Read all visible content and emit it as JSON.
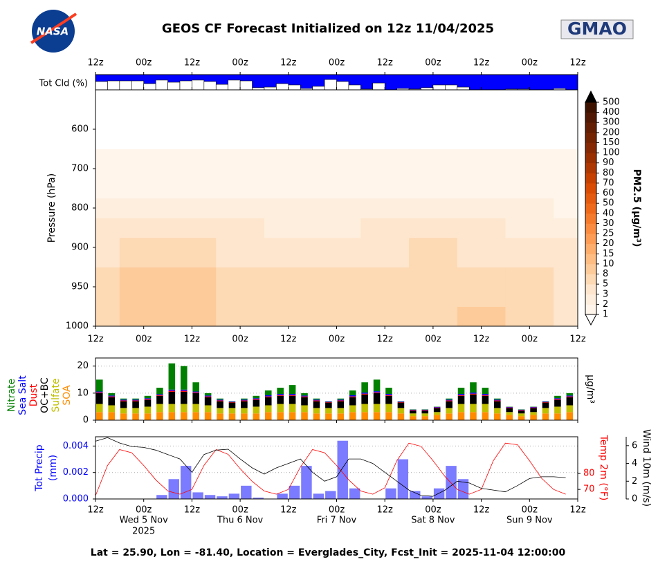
{
  "header": {
    "title": "GEOS CF Forecast Initialized on 12z 11/04/2025",
    "nasa_logo": "NASA",
    "gmao_logo": "GMAO"
  },
  "footer": "Lat = 25.90, Lon = -81.40, Location = Everglades_City, Fcst_Init = 2025-11-04 12:00:00",
  "chart_data": [
    {
      "type": "bar",
      "ylabel": "Tot Cld (%)",
      "color": "#ffffff",
      "background": "#0000ff",
      "x": [
        0,
        3,
        6,
        9,
        12,
        15,
        18,
        21,
        24,
        27,
        30,
        33,
        36,
        39,
        42,
        45,
        48,
        51,
        54,
        57,
        60,
        63,
        66,
        69,
        72,
        75,
        78,
        81,
        84,
        87,
        90,
        93,
        96,
        99,
        102,
        105,
        108,
        111,
        114,
        117
      ],
      "values": [
        55,
        59,
        59,
        59,
        41,
        64,
        50,
        59,
        64,
        55,
        36,
        64,
        59,
        14,
        18,
        41,
        32,
        9,
        23,
        68,
        55,
        32,
        5,
        45,
        0,
        9,
        5,
        14,
        32,
        32,
        18,
        0,
        0,
        0,
        5,
        5,
        0,
        0,
        9,
        0
      ],
      "xlim": [
        0,
        120
      ],
      "ylim": [
        0,
        100
      ],
      "xticks": [
        {
          "value": 0,
          "label": "12z"
        },
        {
          "value": 12,
          "label": "00z"
        },
        {
          "value": 24,
          "label": "12z"
        },
        {
          "value": 36,
          "label": "00z"
        },
        {
          "value": 48,
          "label": "12z"
        },
        {
          "value": 60,
          "label": "00z"
        },
        {
          "value": 72,
          "label": "12z"
        },
        {
          "value": 84,
          "label": "00z"
        },
        {
          "value": 96,
          "label": "12z"
        },
        {
          "value": 108,
          "label": "00z"
        },
        {
          "value": 120,
          "label": "12z"
        }
      ]
    },
    {
      "type": "contour",
      "ylabel": "Pressure (hPa)",
      "x": [
        0,
        12,
        24,
        36,
        48,
        60,
        72,
        84,
        96,
        108,
        120
      ],
      "y": [
        1000,
        950,
        900,
        850,
        800,
        750,
        700,
        600
      ],
      "values": [
        [
          5,
          8,
          8,
          5,
          5,
          5,
          5,
          5,
          8,
          5,
          3
        ],
        [
          5,
          8,
          8,
          5,
          5,
          5,
          5,
          5,
          5,
          5,
          3
        ],
        [
          3,
          5,
          5,
          3,
          3,
          3,
          3,
          5,
          3,
          3,
          3
        ],
        [
          3,
          3,
          3,
          3,
          2,
          2,
          3,
          3,
          3,
          2,
          2
        ],
        [
          2,
          2,
          2,
          2,
          2,
          2,
          2,
          2,
          2,
          2,
          1.5
        ],
        [
          1.5,
          1.5,
          1.5,
          1.5,
          1,
          1,
          1.5,
          1.5,
          1.5,
          1.5,
          1
        ],
        [
          1,
          1,
          1.5,
          1.5,
          1,
          1,
          1,
          1,
          1,
          1,
          1
        ],
        [
          0.5,
          0.5,
          0.5,
          0.5,
          0.5,
          0.5,
          0.5,
          0.5,
          0.5,
          0.5,
          0.5
        ]
      ],
      "xlim": [
        0,
        120
      ],
      "ylim": [
        1000,
        500
      ],
      "yticks": [
        1000,
        950,
        900,
        800,
        700,
        600
      ],
      "xticks": [
        {
          "value": 0,
          "label": "12z"
        },
        {
          "value": 12,
          "label": "00z"
        },
        {
          "value": 24,
          "label": "12z"
        },
        {
          "value": 36,
          "label": "00z"
        },
        {
          "value": 48,
          "label": "12z"
        },
        {
          "value": 60,
          "label": "00z"
        },
        {
          "value": 72,
          "label": "12z"
        },
        {
          "value": 84,
          "label": "00z"
        },
        {
          "value": 96,
          "label": "12z"
        },
        {
          "value": 108,
          "label": "00z"
        },
        {
          "value": 120,
          "label": "12z"
        }
      ],
      "colorbar": {
        "label": "PM2.5 (μg/m³)",
        "levels": [
          1,
          2,
          3,
          5,
          8,
          10,
          15,
          20,
          25,
          30,
          40,
          50,
          60,
          70,
          80,
          90,
          100,
          150,
          200,
          300,
          400,
          500
        ],
        "colors": [
          "#fff5eb",
          "#feeedd",
          "#fee6ce",
          "#fdd9b4",
          "#fdcb9a",
          "#fdbd83",
          "#fdad6c",
          "#fd9d55",
          "#f98c40",
          "#f57b2c",
          "#ee6a1a",
          "#e45a0e",
          "#d94c04",
          "#c54102",
          "#ae3802",
          "#983002",
          "#842904",
          "#732403",
          "#621f03",
          "#501903",
          "#3d1300"
        ],
        "extend_colors": [
          "#ffffff",
          "#000000"
        ]
      }
    },
    {
      "type": "stacked_bar",
      "ylabel": "μg/m³",
      "x": [
        0,
        3,
        6,
        9,
        12,
        15,
        18,
        21,
        24,
        27,
        30,
        33,
        36,
        39,
        42,
        45,
        48,
        51,
        54,
        57,
        60,
        63,
        66,
        69,
        72,
        75,
        78,
        81,
        84,
        87,
        90,
        93,
        96,
        99,
        102,
        105,
        108,
        111,
        114,
        117
      ],
      "series": [
        {
          "name": "SOA",
          "color": "#ff8c00",
          "values": [
            3,
            3,
            2.5,
            2.5,
            2.5,
            3,
            3,
            3,
            3,
            3,
            2.5,
            2.5,
            2.5,
            2.5,
            3,
            3,
            3,
            3,
            2.5,
            2.5,
            2.5,
            3,
            3,
            3,
            3,
            2.5,
            1.5,
            1.5,
            2,
            2.5,
            3,
            3,
            3,
            2.5,
            2,
            1.5,
            2,
            2.5,
            2.5,
            3
          ]
        },
        {
          "name": "Sulfate",
          "color": "#bfbf00",
          "values": [
            3,
            2.5,
            2,
            2,
            2.5,
            3,
            3,
            3,
            3,
            2.5,
            2,
            2,
            2,
            2.5,
            2.5,
            3,
            3,
            2.5,
            2,
            2,
            2,
            2.5,
            3,
            3,
            3,
            2,
            1,
            1,
            1,
            2,
            3,
            3,
            3,
            2,
            1,
            1,
            1,
            2,
            2.5,
            2.5
          ]
        },
        {
          "name": "OC+BC",
          "color": "#000000",
          "values": [
            4,
            3,
            2.5,
            2.5,
            2.5,
            3,
            4.5,
            4.5,
            4,
            3,
            2.5,
            2,
            2.5,
            2.5,
            3,
            3,
            3,
            3,
            2.5,
            2,
            2.5,
            3,
            3.5,
            4,
            3,
            2,
            1,
            1,
            1.5,
            2.5,
            3,
            3.5,
            3,
            2.5,
            1.5,
            1,
            1.5,
            2,
            2.5,
            3
          ]
        },
        {
          "name": "Dust",
          "color": "#ff0000",
          "values": [
            0.3,
            0.3,
            0.3,
            0.3,
            0.3,
            0.3,
            0.4,
            0.4,
            0.3,
            0.3,
            0.3,
            0.2,
            0.3,
            0.3,
            0.3,
            0.3,
            0.3,
            0.3,
            0.3,
            0.2,
            0.3,
            0.3,
            0.3,
            0.3,
            0.3,
            0.2,
            0.2,
            0.2,
            0.2,
            0.3,
            0.3,
            0.3,
            0.3,
            0.3,
            0.2,
            0.2,
            0.2,
            0.2,
            0.3,
            0.3
          ]
        },
        {
          "name": "Sea Salt",
          "color": "#0000ff",
          "values": [
            0.3,
            0.3,
            0.3,
            0.3,
            0.3,
            0.3,
            0.4,
            0.4,
            0.3,
            0.3,
            0.3,
            0.2,
            0.3,
            0.3,
            0.4,
            0.4,
            0.4,
            0.3,
            0.3,
            0.2,
            0.3,
            0.4,
            0.4,
            0.4,
            0.4,
            0.2,
            0.2,
            0.2,
            0.2,
            0.3,
            0.4,
            0.4,
            0.4,
            0.3,
            0.2,
            0.2,
            0.2,
            0.2,
            0.3,
            0.3
          ]
        },
        {
          "name": "Nitrate",
          "color": "#008000",
          "values": [
            4.4,
            0.9,
            0.4,
            0.4,
            0.9,
            2.4,
            9.7,
            8.7,
            3.4,
            0.9,
            0.4,
            0.1,
            0.4,
            0.9,
            1.8,
            2.3,
            3.3,
            0.9,
            0.4,
            0.1,
            0.4,
            1.8,
            3.8,
            4.3,
            2.3,
            0.1,
            0.1,
            0.1,
            0.1,
            0.4,
            2.3,
            3.8,
            2.3,
            0.4,
            0.1,
            0.1,
            0.1,
            0.1,
            0.9,
            0.9
          ]
        }
      ],
      "xlim": [
        0,
        120
      ],
      "ylim": [
        0,
        23
      ],
      "yticks": [
        0,
        10,
        20
      ],
      "xticks": [
        0,
        12,
        24,
        36,
        48,
        60,
        72,
        84,
        96,
        108,
        120
      ],
      "grid": true
    },
    {
      "type": "combo",
      "ylabel": [
        "Tot Precip",
        "(mm)"
      ],
      "y2label": "Temp 2m (°F)",
      "y3label": "Wind 10m (m/s)",
      "axis_colors": {
        "y": "#0000ff",
        "y2": "#ff0000",
        "y3": "#000000"
      },
      "x": [
        0,
        3,
        6,
        9,
        12,
        15,
        18,
        21,
        24,
        27,
        30,
        33,
        36,
        39,
        42,
        45,
        48,
        51,
        54,
        57,
        60,
        63,
        66,
        69,
        72,
        75,
        78,
        81,
        84,
        87,
        90,
        93,
        96,
        99,
        102,
        105,
        108,
        111,
        114,
        117
      ],
      "series": [
        {
          "name": "Tot Precip",
          "type": "bar",
          "axis": "y",
          "color": "#7b7bff",
          "values": [
            0,
            0,
            0,
            0,
            0,
            0.0003,
            0.0015,
            0.0025,
            0.0005,
            0.0003,
            0.0002,
            0.0004,
            0.001,
            0.0001,
            0,
            0.0004,
            0.001,
            0.0025,
            0.0004,
            0.0006,
            0.0044,
            0.0008,
            0,
            0,
            0.0008,
            0.003,
            0.0006,
            0.0002,
            0.0008,
            0.0025,
            0.0015,
            0,
            0,
            0,
            0,
            0,
            0,
            0,
            0,
            0
          ]
        },
        {
          "name": "Temp 2m",
          "type": "line",
          "axis": "y2",
          "color": "#ff0000",
          "values": [
            66,
            85,
            95,
            93,
            85,
            76,
            69,
            67,
            70,
            85,
            95,
            92,
            83,
            75,
            69,
            67,
            70,
            84,
            95,
            93,
            85,
            76,
            69,
            67,
            71,
            88,
            99,
            97,
            88,
            78,
            70,
            67,
            70,
            88,
            99,
            98,
            88,
            77,
            70,
            67
          ]
        },
        {
          "name": "Wind 10m",
          "type": "line",
          "axis": "y3",
          "color": "#000000",
          "values": [
            6.5,
            6.9,
            6.3,
            5.9,
            5.8,
            5.5,
            5.0,
            4.5,
            3.0,
            5.0,
            5.5,
            5.6,
            4.5,
            3.5,
            2.8,
            3.5,
            4.0,
            4.5,
            3.0,
            2.0,
            2.5,
            4.5,
            4.5,
            4.0,
            3.0,
            2.0,
            1.0,
            0.4,
            0.3,
            1.0,
            2.0,
            1.8,
            1.2,
            1.0,
            0.8,
            1.5,
            2.3,
            2.5,
            2.5,
            2.4
          ]
        }
      ],
      "xlim": [
        0,
        120
      ],
      "ylim": [
        0,
        0.0047
      ],
      "y2lim": [
        64,
        103
      ],
      "y3lim": [
        0,
        7
      ],
      "yticks": [
        {
          "value": 0,
          "label": "0.000"
        },
        {
          "value": 0.002,
          "label": "0.002"
        },
        {
          "value": 0.004,
          "label": "0.004"
        }
      ],
      "y2ticks": [
        70,
        80
      ],
      "y3ticks": [
        0,
        2,
        4,
        6
      ],
      "grid": true,
      "xticks": [
        {
          "value": 0,
          "label": "12z"
        },
        {
          "value": 12,
          "label": "00z"
        },
        {
          "value": 24,
          "label": "12z"
        },
        {
          "value": 36,
          "label": "00z"
        },
        {
          "value": 48,
          "label": "12z"
        },
        {
          "value": 60,
          "label": "00z"
        },
        {
          "value": 72,
          "label": "12z"
        },
        {
          "value": 84,
          "label": "00z"
        },
        {
          "value": 96,
          "label": "12z"
        },
        {
          "value": 108,
          "label": "00z"
        },
        {
          "value": 120,
          "label": "12z"
        }
      ],
      "date_labels": [
        {
          "value": 12,
          "label": "Wed 5 Nov"
        },
        {
          "value": 36,
          "label": "Thu 6 Nov"
        },
        {
          "value": 60,
          "label": "Fri 7 Nov"
        },
        {
          "value": 84,
          "label": "Sat 8 Nov"
        },
        {
          "value": 108,
          "label": "Sun 9 Nov"
        }
      ],
      "year_label": {
        "value": 12,
        "label": "2025"
      }
    }
  ]
}
